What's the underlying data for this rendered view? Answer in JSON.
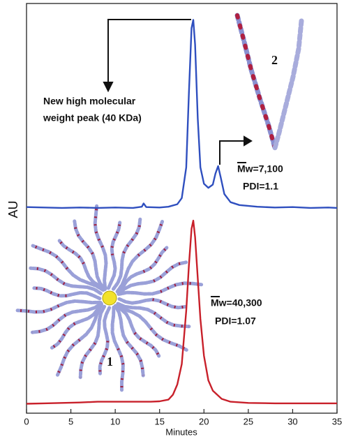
{
  "chart_data": {
    "type": "line",
    "x_label": "Minutes",
    "y_label": "AU",
    "xlim": [
      0,
      35
    ],
    "xticks": [
      0,
      5,
      10,
      15,
      20,
      25,
      30,
      35
    ],
    "ylim": [
      0,
      100
    ],
    "series": [
      {
        "color": "#2f4fbf",
        "x": [
          0,
          2,
          4,
          6,
          8,
          10,
          12,
          13,
          13.2,
          13.5,
          15,
          16,
          17,
          17.5,
          18,
          18.3,
          18.6,
          18.8,
          19,
          19.3,
          19.6,
          20,
          20.5,
          21,
          21.3,
          21.6,
          21.9,
          22.3,
          23,
          24,
          26,
          28,
          30,
          32,
          34,
          35
        ],
        "values": [
          50.3,
          50.2,
          50.1,
          50.2,
          50.1,
          50.2,
          50.1,
          50.4,
          51.2,
          50.3,
          50.2,
          50.4,
          51,
          52.5,
          60,
          78,
          94,
          96,
          90,
          72,
          60,
          56,
          55,
          55.8,
          58.5,
          60.3,
          57.5,
          53.5,
          51.5,
          50.8,
          50.4,
          50.2,
          50.3,
          50.1,
          50.2,
          50.1
        ]
      },
      {
        "color": "#c8202a",
        "x": [
          0,
          2,
          4,
          6,
          8,
          10,
          12,
          14,
          15,
          16,
          16.5,
          17,
          17.5,
          18,
          18.3,
          18.6,
          18.8,
          19,
          19.3,
          19.6,
          20,
          20.5,
          21,
          22,
          23,
          25,
          28,
          31,
          35
        ],
        "values": [
          2.3,
          2.4,
          2.5,
          2.6,
          2.8,
          2.8,
          2.8,
          2.8,
          2.9,
          3.3,
          4.5,
          7,
          12,
          25,
          36,
          45,
          47,
          43,
          33,
          23,
          14,
          8,
          5.5,
          3.5,
          2.8,
          2.5,
          2.4,
          2.4,
          2.4
        ]
      }
    ],
    "annotations": [
      "New high molecular",
      "weight peak (40 KDa)",
      "Mw=7,100",
      "PDI=1.1",
      "Mw=40,300",
      "PDI=1.07",
      "2",
      "1"
    ]
  }
}
